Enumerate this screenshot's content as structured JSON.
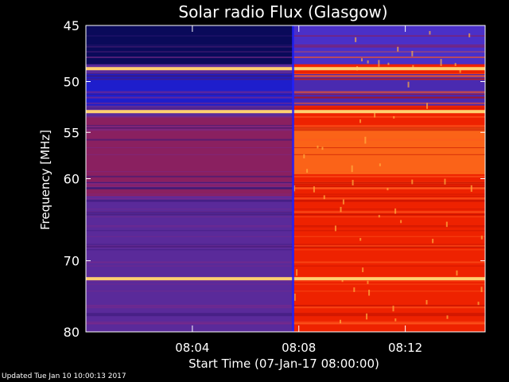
{
  "chart_data": {
    "type": "heatmap",
    "title": "Solar radio Flux (Glasgow)",
    "xlabel": "Start Time (07-Jan-17 08:00:00)",
    "ylabel": "Frequency [MHz]",
    "x_ticks": [
      "08:04",
      "08:08",
      "08:12"
    ],
    "x_tick_minutes": [
      4,
      8,
      12
    ],
    "xlim_minutes": [
      0,
      15
    ],
    "y_ticks": [
      45,
      50,
      55,
      60,
      70,
      80
    ],
    "ylim": [
      45,
      80
    ],
    "y_scale": "log",
    "transition_minute": 7.8,
    "bright_bands_mhz": [
      48.8,
      52.9,
      72.4
    ],
    "colors": {
      "pre_low": "#0a0a5a",
      "pre_mid": "#1e1ecc",
      "pre_body": "#5a2a9a",
      "post_low": "#4a30c8",
      "post_body": "#ee2200",
      "post_bright": "#ff7a20",
      "band": "#ffd070",
      "event": "#ff9040"
    }
  },
  "footer": {
    "updated": "Updated Tue Jan 10 10:00:13 2017"
  }
}
